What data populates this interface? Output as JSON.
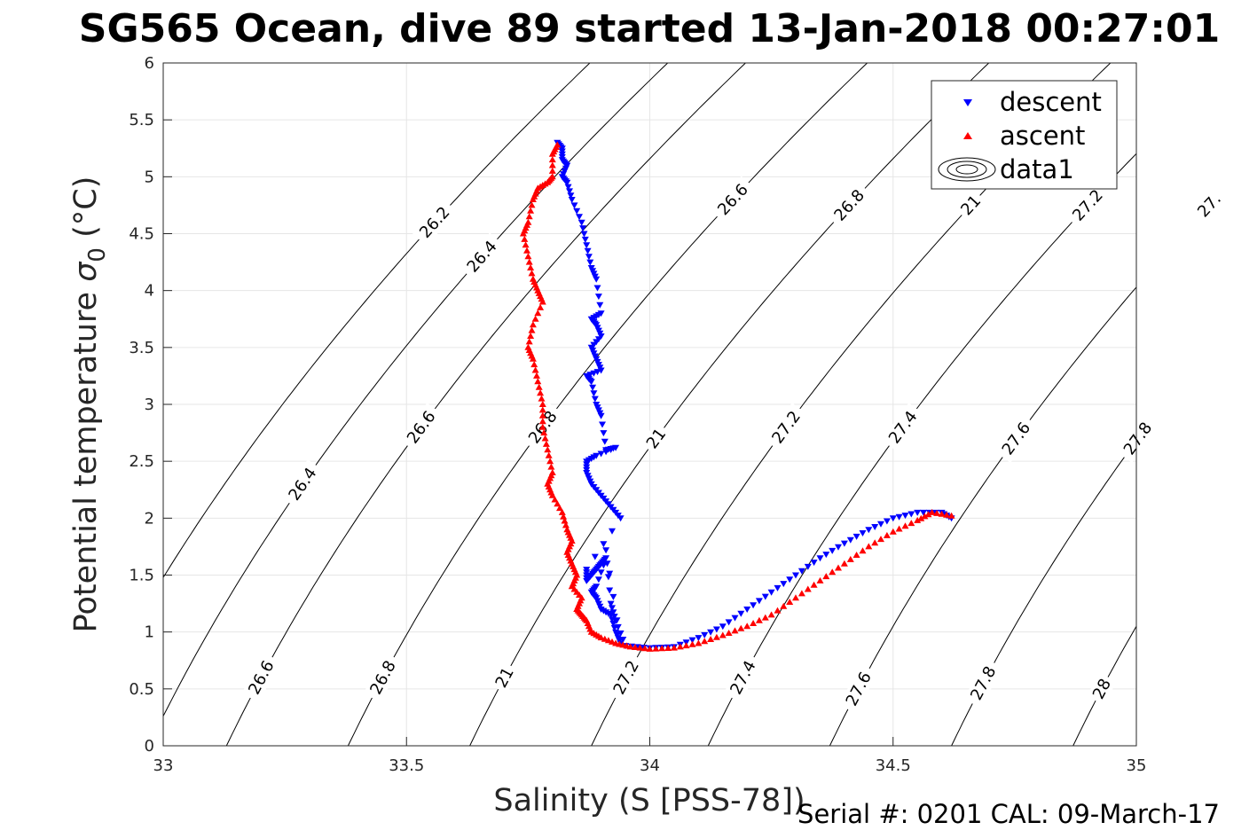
{
  "chart_data": {
    "type": "scatter",
    "title": "SG565 Ocean, dive 89 started 13-Jan-2018 00:27:01",
    "xlabel": "Salinity (S [PSS-78])",
    "ylabel_main": "Potential temperature",
    "ylabel_symbol": "σ",
    "ylabel_subscript": "0",
    "ylabel_unit": "(°C)",
    "xlim": [
      33,
      35
    ],
    "ylim": [
      0,
      6
    ],
    "x_ticks": [
      "33",
      "33.5",
      "34",
      "34.5",
      "35"
    ],
    "y_ticks": [
      "0",
      "0.5",
      "1",
      "1.5",
      "2",
      "2.5",
      "3",
      "3.5",
      "4",
      "4.5",
      "5",
      "5.5",
      "6"
    ],
    "grid": true,
    "legend_position": "top-right",
    "colors": {
      "descent": "#0000ff",
      "ascent": "#ff0000",
      "contour": "#000000",
      "grid": "#e6e6e6"
    },
    "footer": "Serial #: 0201  CAL: 09-March-17",
    "series": [
      {
        "name": "descent",
        "marker": "triangle-down",
        "x": [
          33.81,
          33.82,
          33.82,
          33.83,
          33.82,
          33.83,
          33.84,
          33.86,
          33.87,
          33.88,
          33.89,
          33.9,
          33.88,
          33.89,
          33.9,
          33.88,
          33.89,
          33.9,
          33.87,
          33.88,
          33.89,
          33.9,
          33.91,
          33.93,
          33.89,
          33.87,
          33.87,
          33.88,
          33.9,
          33.92,
          33.94,
          33.87,
          33.87,
          33.88,
          33.89,
          33.9,
          33.91,
          33.89,
          33.88,
          33.89,
          33.9,
          33.92,
          33.93,
          33.94,
          33.91,
          33.92,
          33.93,
          33.95,
          34.0,
          34.05,
          34.1,
          34.15,
          34.2,
          34.25,
          34.3,
          34.35,
          34.4,
          34.45,
          34.5,
          34.55,
          34.6,
          34.62
        ],
        "y": [
          5.3,
          5.25,
          5.15,
          5.1,
          5.0,
          4.95,
          4.8,
          4.6,
          4.4,
          4.2,
          4.1,
          3.8,
          3.75,
          3.7,
          3.6,
          3.5,
          3.4,
          3.3,
          3.25,
          3.2,
          3.0,
          2.9,
          2.6,
          2.62,
          2.55,
          2.5,
          2.4,
          2.3,
          2.2,
          2.1,
          2.0,
          1.55,
          1.45,
          1.5,
          1.55,
          1.6,
          1.65,
          1.4,
          1.35,
          1.3,
          1.2,
          1.15,
          1.0,
          0.9,
          1.72,
          1.25,
          1.1,
          0.88,
          0.86,
          0.87,
          0.95,
          1.05,
          1.2,
          1.35,
          1.5,
          1.65,
          1.78,
          1.9,
          2.0,
          2.05,
          2.05,
          2.0
        ]
      },
      {
        "name": "ascent",
        "marker": "triangle-up",
        "x": [
          33.81,
          33.8,
          33.8,
          33.79,
          33.77,
          33.76,
          33.75,
          33.74,
          33.75,
          33.76,
          33.77,
          33.78,
          33.76,
          33.75,
          33.76,
          33.77,
          33.78,
          33.78,
          33.79,
          33.8,
          33.79,
          33.8,
          33.82,
          33.83,
          33.84,
          33.83,
          33.84,
          33.85,
          33.84,
          33.86,
          33.85,
          33.86,
          33.87,
          33.88,
          33.9,
          33.93,
          33.96,
          34.0,
          34.05,
          34.1,
          34.15,
          34.2,
          34.25,
          34.3,
          34.35,
          34.4,
          34.45,
          34.5,
          34.55,
          34.58,
          34.62
        ],
        "y": [
          5.28,
          5.2,
          5.0,
          4.95,
          4.9,
          4.8,
          4.6,
          4.5,
          4.3,
          4.1,
          4.0,
          3.9,
          3.7,
          3.5,
          3.4,
          3.2,
          3.0,
          2.8,
          2.6,
          2.4,
          2.3,
          2.2,
          2.05,
          1.9,
          1.8,
          1.7,
          1.6,
          1.5,
          1.4,
          1.3,
          1.2,
          1.15,
          1.1,
          1.0,
          0.95,
          0.9,
          0.87,
          0.85,
          0.86,
          0.9,
          0.97,
          1.05,
          1.15,
          1.3,
          1.45,
          1.6,
          1.75,
          1.88,
          1.98,
          2.05,
          2.02
        ]
      },
      {
        "name": "data1",
        "marker": "contour"
      }
    ],
    "contours": [
      {
        "level": 26.2,
        "x0": 32.81,
        "labels": [
          {
            "text": "26.2",
            "y": 4.6
          }
        ]
      },
      {
        "level": 26.4,
        "x0": 32.97,
        "labels": [
          {
            "text": "26.4",
            "y": 4.3
          },
          {
            "text": "26.4",
            "y": 2.3
          }
        ]
      },
      {
        "level": 26.6,
        "x0": 33.13,
        "labels": [
          {
            "text": "26.6",
            "y": 2.8
          },
          {
            "text": "26.6",
            "y": 0.6
          }
        ]
      },
      {
        "level": 26.8,
        "x0": 33.38,
        "labels": [
          {
            "text": "26.6",
            "y": 4.8
          },
          {
            "text": "26.8",
            "y": 2.8
          },
          {
            "text": "26.8",
            "y": 0.6
          }
        ]
      },
      {
        "level": 27.0,
        "x0": 33.63,
        "labels": [
          {
            "text": "26.8",
            "y": 4.75
          },
          {
            "text": "21",
            "y": 2.7
          },
          {
            "text": "21",
            "y": 0.6
          }
        ]
      },
      {
        "level": 27.2,
        "x0": 33.88,
        "labels": [
          {
            "text": "21",
            "y": 4.75
          },
          {
            "text": "27.2",
            "y": 2.8
          },
          {
            "text": "27.2",
            "y": 0.6
          }
        ]
      },
      {
        "level": 27.4,
        "x0": 34.12,
        "labels": [
          {
            "text": "27.2",
            "y": 4.75
          },
          {
            "text": "27.4",
            "y": 2.8
          },
          {
            "text": "27.4",
            "y": 0.6
          }
        ]
      },
      {
        "level": 27.6,
        "x0": 34.37,
        "labels": [
          {
            "text": "27.",
            "y": 4.75
          },
          {
            "text": "27.6",
            "y": 2.7
          },
          {
            "text": "27.6",
            "y": 0.5
          }
        ]
      },
      {
        "level": 27.8,
        "x0": 34.62,
        "labels": [
          {
            "text": "27.6",
            "y": 4.8
          },
          {
            "text": "27.8",
            "y": 2.7
          },
          {
            "text": "27.8",
            "y": 0.55
          }
        ]
      },
      {
        "level": 28.0,
        "x0": 34.87,
        "labels": [
          {
            "text": "28",
            "y": 0.5
          }
        ]
      }
    ]
  }
}
